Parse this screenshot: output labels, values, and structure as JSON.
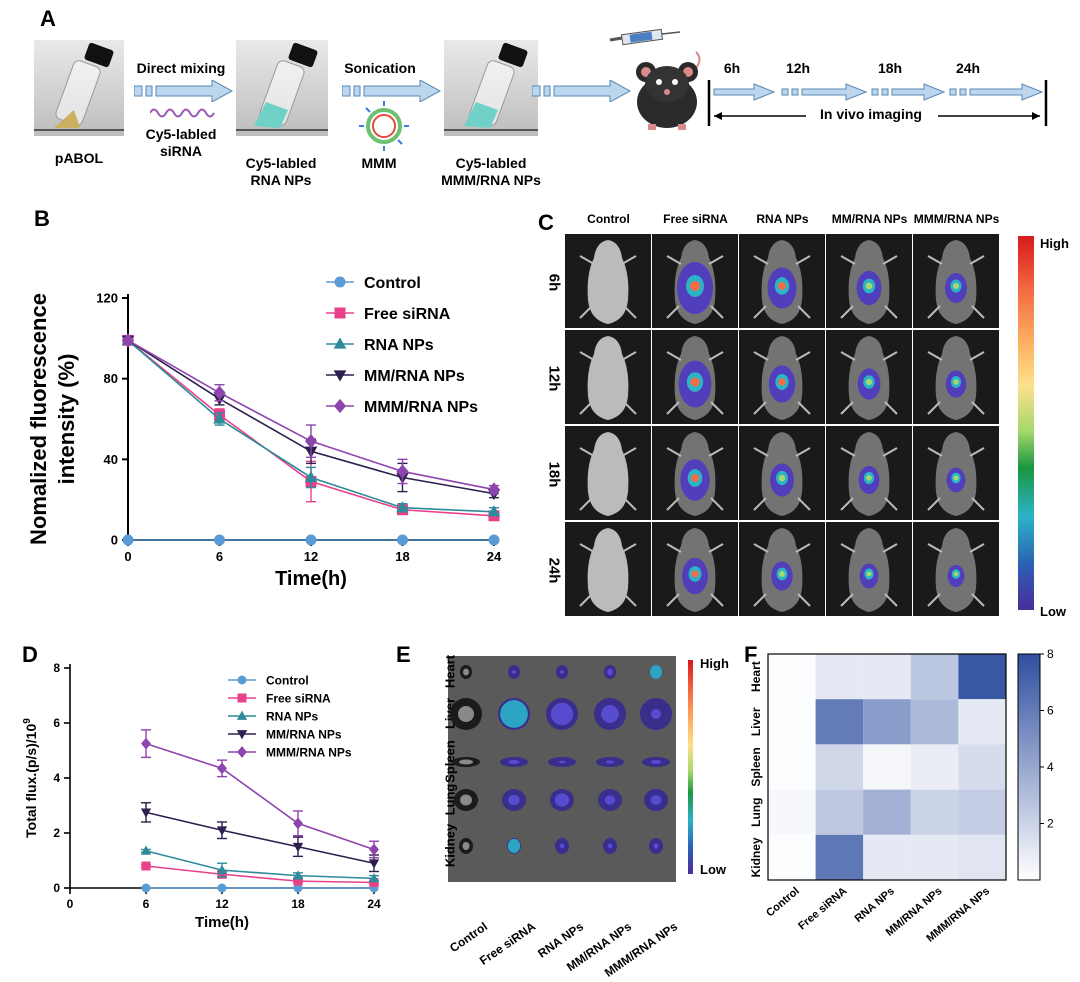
{
  "panels": {
    "a": "A",
    "b": "B",
    "c": "C",
    "d": "D",
    "e": "E",
    "f": "F"
  },
  "schematic": {
    "pabol": "pABOL",
    "step1": "Direct mixing",
    "sirna": [
      "Cy5-labled",
      "siRNA"
    ],
    "rna_nps": [
      "Cy5-labled",
      "RNA NPs"
    ],
    "step2": "Sonication",
    "mmm": "MMM",
    "mmm_rna": [
      "Cy5-labled",
      "MMM/RNA NPs"
    ],
    "times": [
      "6h",
      "12h",
      "18h",
      "24h"
    ],
    "imaging": "In vivo imaging"
  },
  "imaging_panel": {
    "columns": [
      "Control",
      "Free siRNA",
      "RNA NPs",
      "MM/RNA NPs",
      "MMM/RNA NPs"
    ],
    "rows": [
      "6h",
      "12h",
      "18h",
      "24h"
    ],
    "scale_high": "High",
    "scale_low": "Low"
  },
  "organ_panel": {
    "organs": [
      "Heart",
      "Liver",
      "Spleen",
      "Lung",
      "Kidney"
    ],
    "groups": [
      "Control",
      "Free siRNA",
      "RNA NPs",
      "MM/RNA NPs",
      "MMM/RNA NPs"
    ],
    "scale_high": "High",
    "scale_low": "Low"
  },
  "colors": {
    "Control": "#5b9bd5",
    "Free siRNA": "#e8418a",
    "RNA NPs": "#2e8b9a",
    "MM/RNA NPs": "#2e1f4f",
    "MMM/RNA NPs": "#8e44ad",
    "heat": "#2f4f9f"
  },
  "chart_data": [
    {
      "id": "B",
      "type": "line",
      "xlabel": "Time(h)",
      "ylabel": "Nomalized fluorescence intensity (%)",
      "ylabel_lines": [
        "Nomalized fluorescence",
        "intensity (%)"
      ],
      "x": [
        0,
        6,
        12,
        18,
        24
      ],
      "xlim": [
        0,
        24
      ],
      "ylim": [
        0,
        120
      ],
      "xticks": [
        0,
        6,
        12,
        18,
        24
      ],
      "yticks": [
        0,
        40,
        80,
        120
      ],
      "legend_position": "top-right",
      "series": [
        {
          "name": "Control",
          "marker": "circle",
          "values": [
            0,
            0,
            0,
            0,
            0
          ],
          "err": [
            0,
            0,
            0,
            0,
            0
          ]
        },
        {
          "name": "Free siRNA",
          "marker": "square",
          "values": [
            99,
            62,
            29,
            15,
            12
          ],
          "err": [
            1,
            3,
            10,
            2,
            2
          ]
        },
        {
          "name": "RNA NPs",
          "marker": "triangle-up",
          "values": [
            99,
            60,
            31,
            16,
            14
          ],
          "err": [
            1,
            3,
            5,
            2,
            2
          ]
        },
        {
          "name": "MM/RNA NPs",
          "marker": "triangle-down",
          "values": [
            99,
            70,
            44,
            31,
            23
          ],
          "err": [
            1,
            3,
            6,
            7,
            2
          ]
        },
        {
          "name": "MMM/RNA NPs",
          "marker": "diamond",
          "values": [
            99,
            73,
            49,
            34,
            25
          ],
          "err": [
            1,
            4,
            8,
            6,
            2
          ]
        }
      ]
    },
    {
      "id": "D",
      "type": "line",
      "xlabel": "Time(h)",
      "ylabel": "Total flux.(p/s)/10^9",
      "ylabel_text": "Total flux.(p/s)/10",
      "ylabel_sup": "9",
      "x": [
        6,
        12,
        18,
        24
      ],
      "xlim": [
        0,
        24
      ],
      "ylim": [
        0,
        8
      ],
      "xticks": [
        0,
        6,
        12,
        18,
        24
      ],
      "yticks": [
        0,
        2,
        4,
        6,
        8
      ],
      "legend_position": "top-right",
      "series": [
        {
          "name": "Control",
          "marker": "circle",
          "values": [
            0,
            0,
            0,
            0
          ],
          "err": [
            0,
            0,
            0,
            0
          ]
        },
        {
          "name": "Free siRNA",
          "marker": "square",
          "values": [
            0.8,
            0.5,
            0.25,
            0.2
          ],
          "err": [
            0.05,
            0.1,
            0.05,
            0.05
          ]
        },
        {
          "name": "RNA NPs",
          "marker": "triangle-up",
          "values": [
            1.35,
            0.65,
            0.45,
            0.35
          ],
          "err": [
            0.05,
            0.25,
            0.1,
            0.1
          ]
        },
        {
          "name": "MM/RNA NPs",
          "marker": "triangle-down",
          "values": [
            2.75,
            2.1,
            1.5,
            0.9
          ],
          "err": [
            0.35,
            0.3,
            0.35,
            0.3
          ]
        },
        {
          "name": "MMM/RNA NPs",
          "marker": "diamond",
          "values": [
            5.25,
            4.35,
            2.35,
            1.4
          ],
          "err": [
            0.5,
            0.3,
            0.45,
            0.3
          ]
        }
      ]
    },
    {
      "id": "F",
      "type": "heatmap",
      "rows": [
        "Heart",
        "Liver",
        "Spleen",
        "Lung",
        "Kidney"
      ],
      "columns": [
        "Control",
        "Free siRNA",
        "RNA NPs",
        "MM/RNA NPs",
        "MMM/RNA NPs"
      ],
      "values": [
        [
          0.1,
          1.0,
          1.0,
          2.6,
          7.6
        ],
        [
          0.1,
          6.0,
          4.5,
          3.2,
          1.0
        ],
        [
          0.1,
          1.8,
          0.4,
          0.8,
          1.6
        ],
        [
          0.3,
          2.5,
          3.6,
          2.0,
          2.3
        ],
        [
          0.1,
          6.2,
          1.0,
          1.0,
          1.2
        ]
      ],
      "colorbar_range": [
        0,
        8
      ],
      "colorbar_ticks": [
        2,
        4,
        6,
        8
      ]
    }
  ]
}
